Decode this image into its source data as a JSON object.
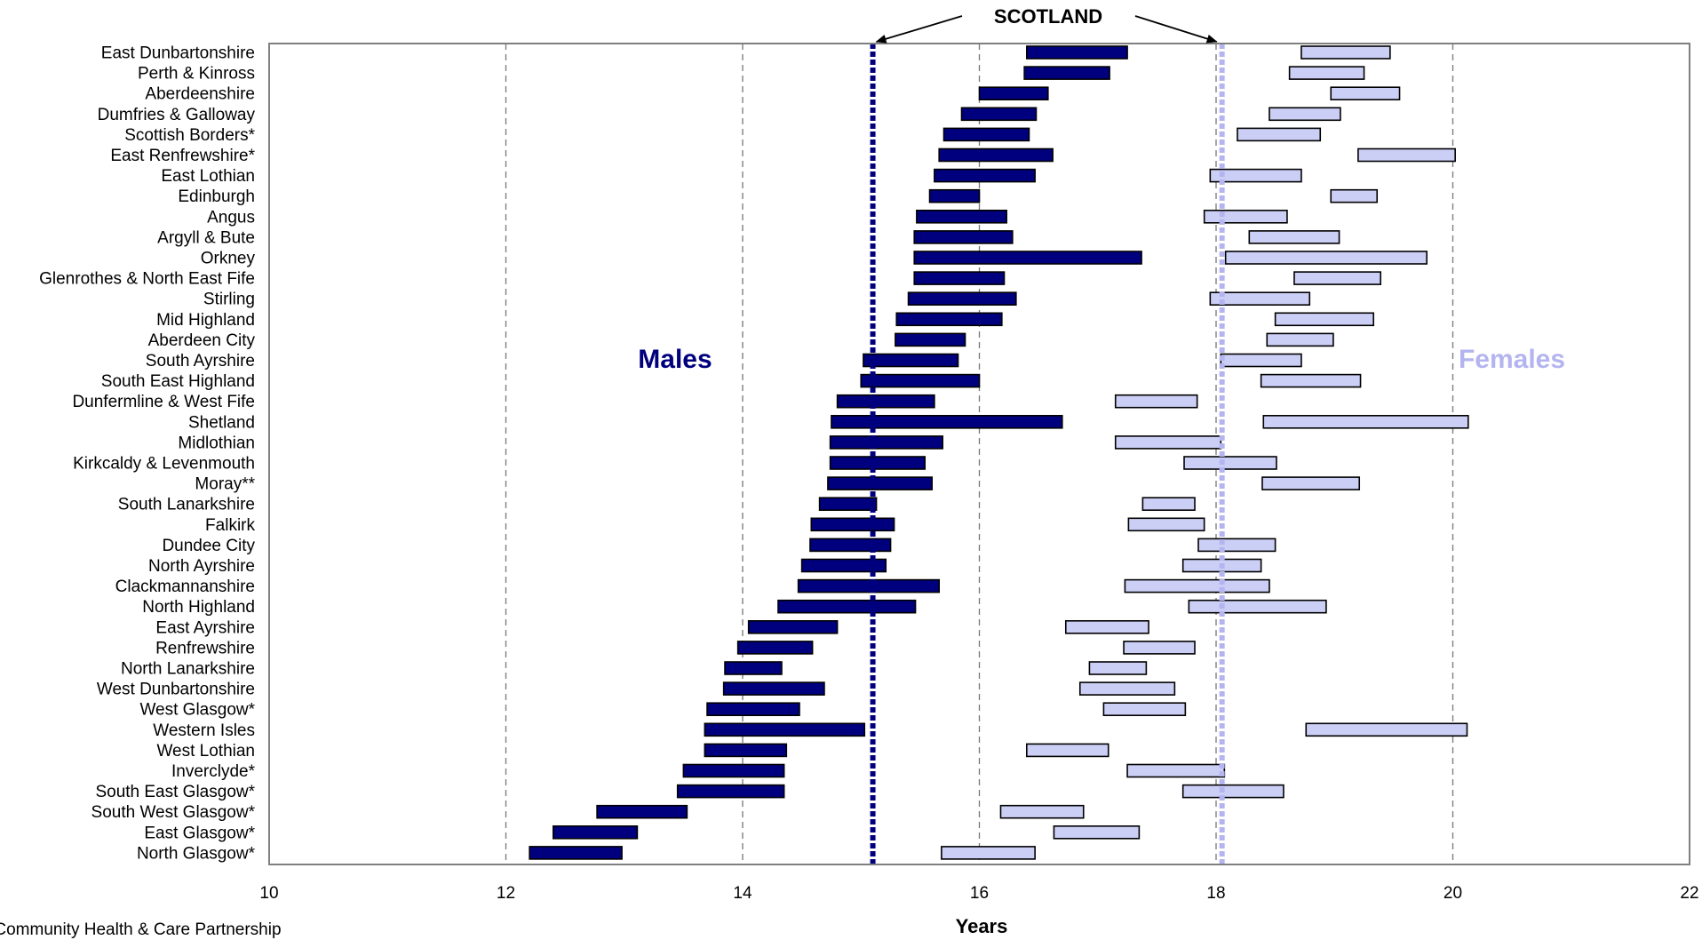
{
  "chart_data": {
    "type": "bar",
    "orientation": "horizontal",
    "subtype": "floating-range",
    "xlabel": "Years",
    "xlim": [
      10,
      22
    ],
    "xticks": [
      10,
      12,
      14,
      16,
      18,
      20,
      22
    ],
    "grid": "vertical dashed",
    "reference_label": "SCOTLAND",
    "reference_lines": [
      {
        "series": "Males",
        "value": 15.1,
        "color": "#00007f"
      },
      {
        "series": "Females",
        "value": 18.05,
        "color": "#b4b4f0"
      }
    ],
    "categories": [
      "East Dunbartonshire",
      "Perth & Kinross",
      "Aberdeenshire",
      "Dumfries & Galloway",
      "Scottish Borders*",
      "East Renfrewshire*",
      "East Lothian",
      "Edinburgh",
      "Angus",
      "Argyll & Bute",
      "Orkney",
      "Glenrothes & North East Fife",
      "Stirling",
      "Mid Highland",
      "Aberdeen City",
      "South Ayrshire",
      "South East Highland",
      "Dunfermline & West Fife",
      "Shetland",
      "Midlothian",
      "Kirkcaldy & Levenmouth",
      "Moray**",
      "South Lanarkshire",
      "Falkirk",
      "Dundee City",
      "North Ayrshire",
      "Clackmannanshire",
      "North Highland",
      "East Ayrshire",
      "Renfrewshire",
      "North Lanarkshire",
      "West Dunbartonshire",
      "West Glasgow*",
      "Western Isles",
      "West Lothian",
      "Inverclyde*",
      "South East Glasgow*",
      "South West Glasgow*",
      "East Glasgow*",
      "North Glasgow*"
    ],
    "series": [
      {
        "name": "Males",
        "color": "#00007f",
        "values": [
          [
            16.4,
            17.25
          ],
          [
            16.38,
            17.1
          ],
          [
            16.0,
            16.58
          ],
          [
            15.85,
            16.48
          ],
          [
            15.7,
            16.42
          ],
          [
            15.66,
            16.62
          ],
          [
            15.62,
            16.47
          ],
          [
            15.58,
            16.0
          ],
          [
            15.47,
            16.23
          ],
          [
            15.45,
            16.28
          ],
          [
            15.45,
            17.37
          ],
          [
            15.45,
            16.21
          ],
          [
            15.4,
            16.31
          ],
          [
            15.3,
            16.19
          ],
          [
            15.29,
            15.88
          ],
          [
            15.02,
            15.82
          ],
          [
            15.0,
            16.0
          ],
          [
            14.8,
            15.62
          ],
          [
            14.75,
            16.7
          ],
          [
            14.74,
            15.69
          ],
          [
            14.74,
            15.54
          ],
          [
            14.72,
            15.6
          ],
          [
            14.65,
            15.13
          ],
          [
            14.58,
            15.28
          ],
          [
            14.57,
            15.25
          ],
          [
            14.5,
            15.21
          ],
          [
            14.47,
            15.66
          ],
          [
            14.3,
            15.46
          ],
          [
            14.05,
            14.8
          ],
          [
            13.96,
            14.59
          ],
          [
            13.85,
            14.33
          ],
          [
            13.84,
            14.69
          ],
          [
            13.7,
            14.48
          ],
          [
            13.68,
            15.03
          ],
          [
            13.68,
            14.37
          ],
          [
            13.5,
            14.35
          ],
          [
            13.45,
            14.35
          ],
          [
            12.77,
            13.53
          ],
          [
            12.4,
            13.11
          ],
          [
            12.2,
            12.98
          ]
        ]
      },
      {
        "name": "Females",
        "color": "#cccff5",
        "values": [
          [
            18.72,
            19.47
          ],
          [
            18.62,
            19.25
          ],
          [
            18.97,
            19.55
          ],
          [
            18.45,
            19.05
          ],
          [
            18.18,
            18.88
          ],
          [
            19.2,
            20.02
          ],
          [
            17.95,
            18.72
          ],
          [
            18.97,
            19.36
          ],
          [
            17.9,
            18.6
          ],
          [
            18.28,
            19.04
          ],
          [
            18.08,
            19.78
          ],
          [
            18.66,
            19.39
          ],
          [
            17.95,
            18.79
          ],
          [
            18.5,
            19.33
          ],
          [
            18.43,
            18.99
          ],
          [
            18.04,
            18.72
          ],
          [
            18.38,
            19.22
          ],
          [
            17.15,
            17.84
          ],
          [
            18.4,
            20.13
          ],
          [
            17.15,
            18.04
          ],
          [
            17.73,
            18.51
          ],
          [
            18.39,
            19.21
          ],
          [
            17.38,
            17.82
          ],
          [
            17.26,
            17.9
          ],
          [
            17.85,
            18.5
          ],
          [
            17.72,
            18.38
          ],
          [
            17.23,
            18.45
          ],
          [
            17.77,
            18.93
          ],
          [
            16.73,
            17.43
          ],
          [
            17.22,
            17.82
          ],
          [
            16.93,
            17.41
          ],
          [
            16.85,
            17.65
          ],
          [
            17.05,
            17.74
          ],
          [
            18.76,
            20.12
          ],
          [
            16.4,
            17.09
          ],
          [
            17.25,
            18.07
          ],
          [
            17.72,
            18.57
          ],
          [
            16.18,
            16.88
          ],
          [
            16.63,
            17.35
          ],
          [
            15.68,
            16.47
          ]
        ]
      }
    ],
    "annotations": [
      "Males",
      "Females"
    ]
  },
  "footnote": "*Community Health & Care Partnership"
}
